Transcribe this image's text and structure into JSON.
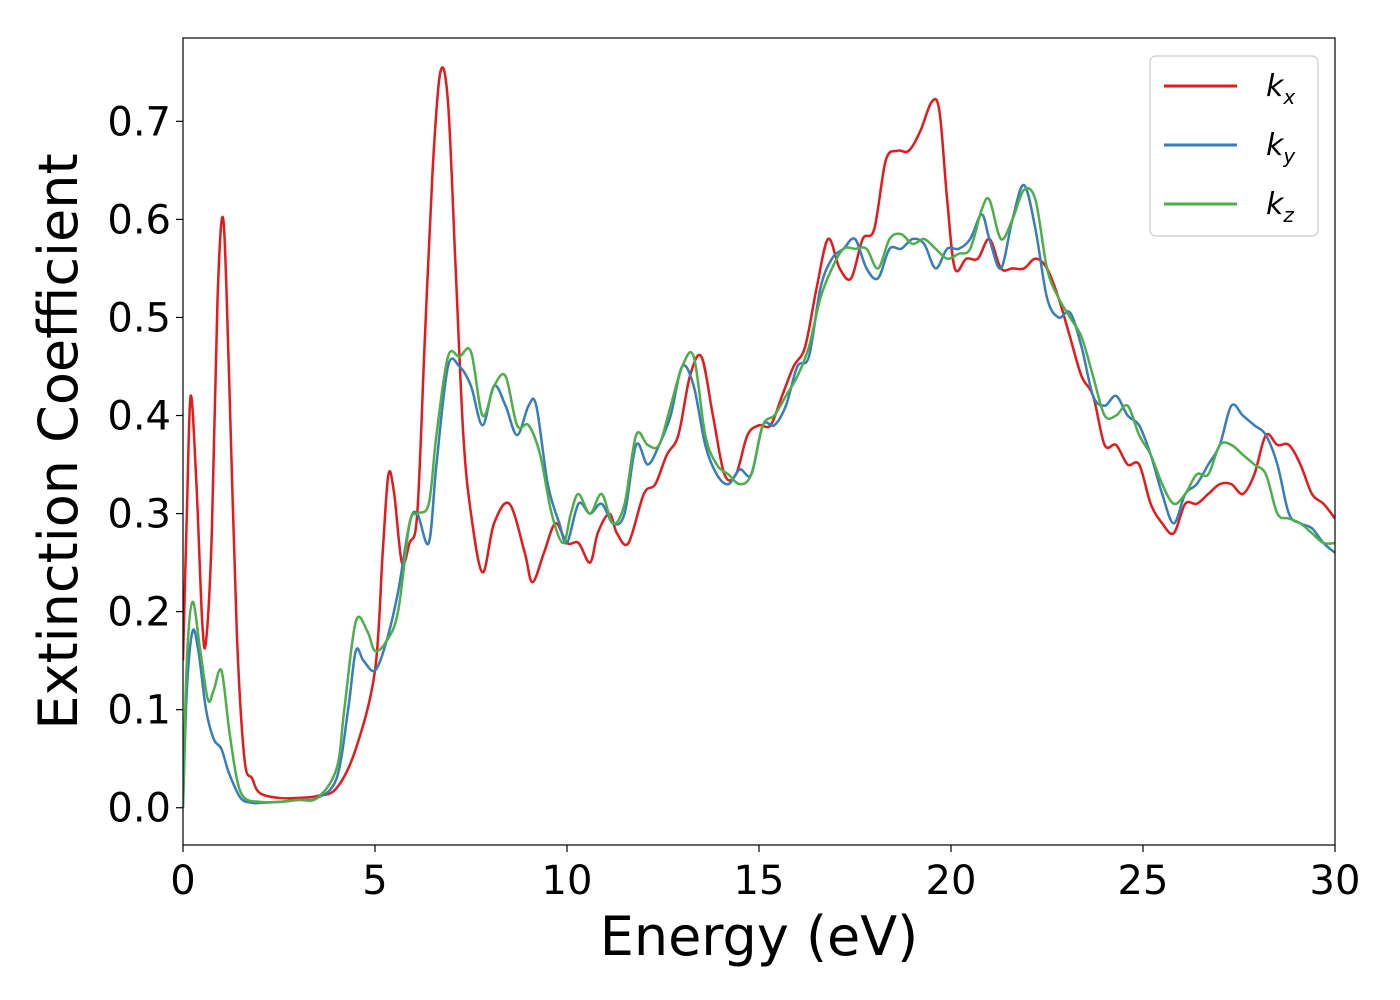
{
  "chart_data": {
    "type": "line",
    "xlabel": "Energy (eV)",
    "ylabel": "Extinction Coefficient",
    "xlim": [
      0,
      30
    ],
    "ylim": [
      -0.038,
      0.785
    ],
    "xticks": [
      0,
      5,
      10,
      15,
      20,
      25,
      30
    ],
    "xtick_labels": [
      "0",
      "5",
      "10",
      "15",
      "20",
      "25",
      "30"
    ],
    "yticks": [
      0.0,
      0.1,
      0.2,
      0.3,
      0.4,
      0.5,
      0.6,
      0.7
    ],
    "ytick_labels": [
      "0.0",
      "0.1",
      "0.2",
      "0.3",
      "0.4",
      "0.5",
      "0.6",
      "0.7"
    ],
    "grid": false,
    "legend_position": "top-right",
    "series": [
      {
        "name": "k",
        "subscript": "x",
        "color": "#e41a1c",
        "x": [
          0,
          0.1,
          0.2,
          0.35,
          0.5,
          0.6,
          0.75,
          0.9,
          1.05,
          1.2,
          1.4,
          1.6,
          1.8,
          2.0,
          2.5,
          3.0,
          3.5,
          4.0,
          4.5,
          5.0,
          5.2,
          5.35,
          5.5,
          5.7,
          5.9,
          6.1,
          6.3,
          6.5,
          6.7,
          6.9,
          7.1,
          7.3,
          7.5,
          7.8,
          8.1,
          8.5,
          8.9,
          9.1,
          9.4,
          9.7,
          10.0,
          10.3,
          10.6,
          10.8,
          11.1,
          11.3,
          11.6,
          12.0,
          12.3,
          12.6,
          12.9,
          13.2,
          13.5,
          13.8,
          14.1,
          14.4,
          14.7,
          15.0,
          15.3,
          15.6,
          15.9,
          16.2,
          16.5,
          16.8,
          17.1,
          17.4,
          17.7,
          18.0,
          18.3,
          18.6,
          18.9,
          19.2,
          19.5,
          19.7,
          19.9,
          20.1,
          20.4,
          20.7,
          21.0,
          21.3,
          21.6,
          21.9,
          22.2,
          22.5,
          22.8,
          23.1,
          23.4,
          23.7,
          24.0,
          24.3,
          24.6,
          24.9,
          25.2,
          25.5,
          25.8,
          26.1,
          26.4,
          26.7,
          27.0,
          27.3,
          27.6,
          27.9,
          28.2,
          28.5,
          28.8,
          29.1,
          29.4,
          29.7,
          30.0
        ],
        "values": [
          0.15,
          0.3,
          0.42,
          0.33,
          0.19,
          0.17,
          0.28,
          0.52,
          0.6,
          0.44,
          0.18,
          0.05,
          0.03,
          0.015,
          0.01,
          0.01,
          0.012,
          0.02,
          0.06,
          0.14,
          0.26,
          0.34,
          0.32,
          0.25,
          0.27,
          0.3,
          0.48,
          0.65,
          0.75,
          0.72,
          0.55,
          0.38,
          0.3,
          0.24,
          0.29,
          0.31,
          0.26,
          0.23,
          0.26,
          0.29,
          0.27,
          0.27,
          0.25,
          0.28,
          0.3,
          0.28,
          0.27,
          0.32,
          0.33,
          0.36,
          0.38,
          0.44,
          0.46,
          0.4,
          0.34,
          0.34,
          0.38,
          0.39,
          0.39,
          0.42,
          0.45,
          0.47,
          0.53,
          0.58,
          0.55,
          0.54,
          0.58,
          0.59,
          0.66,
          0.67,
          0.67,
          0.69,
          0.72,
          0.71,
          0.62,
          0.55,
          0.56,
          0.56,
          0.58,
          0.55,
          0.55,
          0.55,
          0.56,
          0.55,
          0.52,
          0.48,
          0.44,
          0.42,
          0.37,
          0.37,
          0.35,
          0.35,
          0.31,
          0.29,
          0.28,
          0.31,
          0.31,
          0.32,
          0.33,
          0.33,
          0.32,
          0.34,
          0.38,
          0.37,
          0.37,
          0.35,
          0.32,
          0.31,
          0.295
        ]
      },
      {
        "name": "k",
        "subscript": "y",
        "color": "#377eb8",
        "x": [
          0,
          0.1,
          0.25,
          0.4,
          0.6,
          0.8,
          1.0,
          1.2,
          1.5,
          1.8,
          2.0,
          2.5,
          3.0,
          3.5,
          4.0,
          4.3,
          4.5,
          4.7,
          5.0,
          5.3,
          5.6,
          5.9,
          6.1,
          6.4,
          6.6,
          6.9,
          7.2,
          7.5,
          7.8,
          8.1,
          8.4,
          8.7,
          9.0,
          9.2,
          9.5,
          9.8,
          10.0,
          10.3,
          10.6,
          10.9,
          11.2,
          11.5,
          11.8,
          12.1,
          12.4,
          12.7,
          13.0,
          13.3,
          13.6,
          13.9,
          14.2,
          14.5,
          14.8,
          15.1,
          15.4,
          15.7,
          16.0,
          16.3,
          16.6,
          16.9,
          17.2,
          17.5,
          17.8,
          18.1,
          18.4,
          18.7,
          19.0,
          19.3,
          19.6,
          19.9,
          20.2,
          20.5,
          20.8,
          21.0,
          21.3,
          21.6,
          21.9,
          22.2,
          22.5,
          22.8,
          23.1,
          23.4,
          23.7,
          24.0,
          24.3,
          24.6,
          24.9,
          25.2,
          25.5,
          25.8,
          26.1,
          26.4,
          26.7,
          27.0,
          27.3,
          27.6,
          27.9,
          28.2,
          28.5,
          28.8,
          29.1,
          29.4,
          29.7,
          30.0
        ],
        "values": [
          0.0,
          0.12,
          0.18,
          0.16,
          0.1,
          0.07,
          0.06,
          0.035,
          0.01,
          0.005,
          0.005,
          0.006,
          0.008,
          0.01,
          0.03,
          0.1,
          0.16,
          0.15,
          0.14,
          0.17,
          0.22,
          0.29,
          0.3,
          0.27,
          0.35,
          0.45,
          0.45,
          0.43,
          0.39,
          0.43,
          0.41,
          0.38,
          0.41,
          0.41,
          0.33,
          0.29,
          0.27,
          0.31,
          0.3,
          0.31,
          0.29,
          0.3,
          0.37,
          0.35,
          0.37,
          0.4,
          0.45,
          0.43,
          0.37,
          0.34,
          0.33,
          0.345,
          0.34,
          0.39,
          0.39,
          0.41,
          0.45,
          0.46,
          0.53,
          0.56,
          0.57,
          0.58,
          0.55,
          0.54,
          0.57,
          0.57,
          0.58,
          0.575,
          0.55,
          0.57,
          0.57,
          0.58,
          0.605,
          0.58,
          0.55,
          0.6,
          0.635,
          0.59,
          0.52,
          0.5,
          0.505,
          0.47,
          0.42,
          0.41,
          0.42,
          0.4,
          0.39,
          0.36,
          0.32,
          0.29,
          0.32,
          0.33,
          0.35,
          0.37,
          0.41,
          0.4,
          0.39,
          0.38,
          0.35,
          0.3,
          0.29,
          0.285,
          0.27,
          0.26
        ]
      },
      {
        "name": "k",
        "subscript": "z",
        "color": "#4daf4a",
        "x": [
          0,
          0.1,
          0.25,
          0.45,
          0.65,
          0.8,
          1.0,
          1.2,
          1.4,
          1.6,
          2.0,
          2.5,
          3.0,
          3.5,
          4.0,
          4.2,
          4.5,
          4.8,
          5.0,
          5.3,
          5.6,
          5.9,
          6.1,
          6.4,
          6.6,
          6.9,
          7.2,
          7.5,
          7.8,
          8.1,
          8.4,
          8.7,
          9.0,
          9.3,
          9.6,
          9.9,
          10.1,
          10.3,
          10.6,
          10.9,
          11.2,
          11.5,
          11.8,
          12.1,
          12.4,
          12.7,
          13.0,
          13.3,
          13.6,
          13.9,
          14.2,
          14.5,
          14.8,
          15.1,
          15.4,
          15.7,
          16.0,
          16.3,
          16.6,
          16.9,
          17.2,
          17.5,
          17.8,
          18.1,
          18.4,
          18.7,
          19.0,
          19.3,
          19.6,
          19.9,
          20.2,
          20.5,
          20.8,
          21.0,
          21.3,
          21.6,
          21.9,
          22.2,
          22.5,
          22.8,
          23.1,
          23.4,
          23.7,
          24.0,
          24.3,
          24.6,
          24.9,
          25.2,
          25.5,
          25.8,
          26.1,
          26.4,
          26.7,
          27.0,
          27.3,
          27.6,
          27.9,
          28.2,
          28.5,
          28.8,
          29.1,
          29.4,
          29.7,
          30.0
        ],
        "values": [
          0.0,
          0.15,
          0.21,
          0.16,
          0.11,
          0.12,
          0.14,
          0.08,
          0.03,
          0.01,
          0.006,
          0.006,
          0.008,
          0.01,
          0.04,
          0.1,
          0.19,
          0.18,
          0.16,
          0.17,
          0.2,
          0.29,
          0.3,
          0.31,
          0.38,
          0.46,
          0.46,
          0.465,
          0.4,
          0.43,
          0.44,
          0.39,
          0.39,
          0.36,
          0.3,
          0.27,
          0.3,
          0.32,
          0.3,
          0.32,
          0.29,
          0.31,
          0.38,
          0.37,
          0.37,
          0.41,
          0.45,
          0.46,
          0.38,
          0.35,
          0.34,
          0.33,
          0.34,
          0.39,
          0.4,
          0.42,
          0.44,
          0.47,
          0.52,
          0.55,
          0.57,
          0.57,
          0.57,
          0.55,
          0.58,
          0.585,
          0.575,
          0.58,
          0.57,
          0.56,
          0.565,
          0.57,
          0.61,
          0.62,
          0.58,
          0.6,
          0.63,
          0.62,
          0.55,
          0.52,
          0.5,
          0.48,
          0.44,
          0.4,
          0.4,
          0.41,
          0.38,
          0.36,
          0.33,
          0.31,
          0.32,
          0.34,
          0.34,
          0.37,
          0.37,
          0.36,
          0.35,
          0.34,
          0.3,
          0.295,
          0.29,
          0.28,
          0.27,
          0.27
        ]
      }
    ]
  }
}
